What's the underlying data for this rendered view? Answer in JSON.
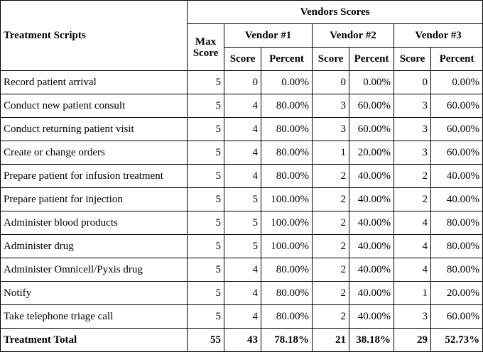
{
  "header": {
    "treatment_scripts": "Treatment Scripts",
    "vendors_scores": "Vendors Scores",
    "max_score_line1": "Max",
    "max_score_line2": "Score",
    "vendors": [
      "Vendor #1",
      "Vendor #2",
      "Vendor #3"
    ],
    "score_label": "Score",
    "percent_label": "Percent"
  },
  "rows": [
    {
      "name": "Record patient arrival",
      "max": "5",
      "v1": {
        "score": "0",
        "pct": "0.00%"
      },
      "v2": {
        "score": "0",
        "pct": "0.00%"
      },
      "v3": {
        "score": "0",
        "pct": "0.00%"
      }
    },
    {
      "name": "Conduct new patient consult",
      "max": "5",
      "v1": {
        "score": "4",
        "pct": "80.00%"
      },
      "v2": {
        "score": "3",
        "pct": "60.00%"
      },
      "v3": {
        "score": "3",
        "pct": "60.00%"
      }
    },
    {
      "name": "Conduct returning patient visit",
      "max": "5",
      "v1": {
        "score": "4",
        "pct": "80.00%"
      },
      "v2": {
        "score": "3",
        "pct": "60.00%"
      },
      "v3": {
        "score": "3",
        "pct": "60.00%"
      }
    },
    {
      "name": "Create or change orders",
      "max": "5",
      "v1": {
        "score": "4",
        "pct": "80.00%"
      },
      "v2": {
        "score": "1",
        "pct": "20.00%"
      },
      "v3": {
        "score": "3",
        "pct": "60.00%"
      }
    },
    {
      "name": "Prepare patient for infusion treatment",
      "max": "5",
      "v1": {
        "score": "4",
        "pct": "80.00%"
      },
      "v2": {
        "score": "2",
        "pct": "40.00%"
      },
      "v3": {
        "score": "2",
        "pct": "40.00%"
      }
    },
    {
      "name": "Prepare patient for injection",
      "max": "5",
      "v1": {
        "score": "5",
        "pct": "100.00%"
      },
      "v2": {
        "score": "2",
        "pct": "40.00%"
      },
      "v3": {
        "score": "2",
        "pct": "40.00%"
      }
    },
    {
      "name": "Administer blood products",
      "max": "5",
      "v1": {
        "score": "5",
        "pct": "100.00%"
      },
      "v2": {
        "score": "2",
        "pct": "40.00%"
      },
      "v3": {
        "score": "4",
        "pct": "80.00%"
      }
    },
    {
      "name": "Administer drug",
      "max": "5",
      "v1": {
        "score": "5",
        "pct": "100.00%"
      },
      "v2": {
        "score": "2",
        "pct": "40.00%"
      },
      "v3": {
        "score": "4",
        "pct": "80.00%"
      }
    },
    {
      "name": "Administer Omnicell/Pyxis drug",
      "max": "5",
      "v1": {
        "score": "4",
        "pct": "80.00%"
      },
      "v2": {
        "score": "2",
        "pct": "40.00%"
      },
      "v3": {
        "score": "4",
        "pct": "80.00%"
      }
    },
    {
      "name": "Notify",
      "max": "5",
      "v1": {
        "score": "4",
        "pct": "80.00%"
      },
      "v2": {
        "score": "2",
        "pct": "40.00%"
      },
      "v3": {
        "score": "1",
        "pct": "20.00%"
      }
    },
    {
      "name": "Take telephone triage call",
      "max": "5",
      "v1": {
        "score": "4",
        "pct": "80.00%"
      },
      "v2": {
        "score": "2",
        "pct": "40.00%"
      },
      "v3": {
        "score": "3",
        "pct": "60.00%"
      }
    }
  ],
  "total": {
    "name": "Treatment Total",
    "max": "55",
    "v1": {
      "score": "43",
      "pct": "78.18%"
    },
    "v2": {
      "score": "21",
      "pct": "38.18%"
    },
    "v3": {
      "score": "29",
      "pct": "52.73%"
    }
  }
}
